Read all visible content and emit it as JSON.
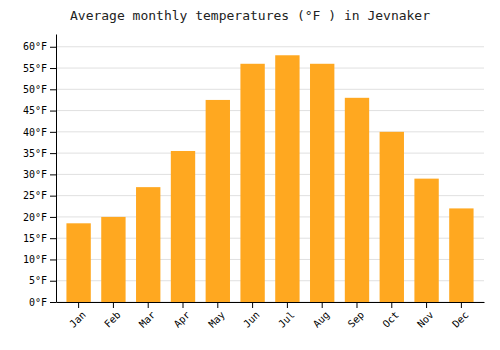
{
  "chart_data": {
    "type": "bar",
    "title": "Average monthly temperatures (°F ) in Jevnaker",
    "categories": [
      "Jan",
      "Feb",
      "Mar",
      "Apr",
      "May",
      "Jun",
      "Jul",
      "Aug",
      "Sep",
      "Oct",
      "Nov",
      "Dec"
    ],
    "values": [
      18.5,
      20.0,
      27.0,
      35.5,
      47.5,
      56.0,
      58.0,
      56.0,
      48.0,
      40.0,
      29.0,
      22.0
    ],
    "color": "#FFA820",
    "ylim": [
      0,
      63
    ],
    "yticks": [
      {
        "value": 0,
        "label": "0°F"
      },
      {
        "value": 5,
        "label": "5°F"
      },
      {
        "value": 10,
        "label": "10°F"
      },
      {
        "value": 15,
        "label": "15°F"
      },
      {
        "value": 20,
        "label": "20°F"
      },
      {
        "value": 25,
        "label": "25°F"
      },
      {
        "value": 30,
        "label": "30°F"
      },
      {
        "value": 35,
        "label": "35°F"
      },
      {
        "value": 40,
        "label": "40°F"
      },
      {
        "value": 45,
        "label": "45°F"
      },
      {
        "value": 50,
        "label": "50°F"
      },
      {
        "value": 55,
        "label": "55°F"
      },
      {
        "value": 60,
        "label": "60°F"
      }
    ],
    "grid": true
  }
}
